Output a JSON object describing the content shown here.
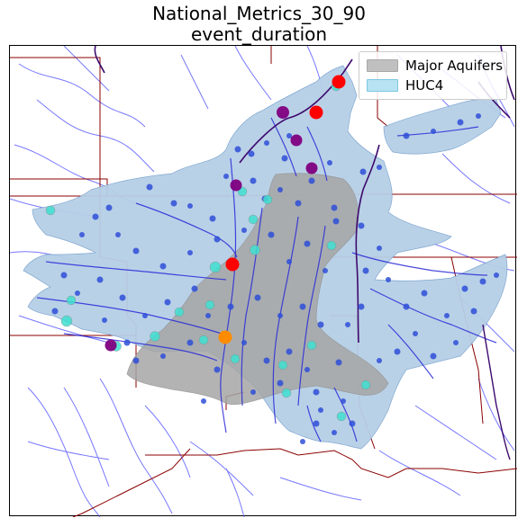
{
  "title_line1": "National_Metrics_30_90",
  "title_line2": "event_duration",
  "legend": [
    {
      "label": "Major Aquifers",
      "color": "#c0c0c0",
      "edge": "#a8a8a8"
    },
    {
      "label": "HUC4",
      "color": "#b7e3f2",
      "edge": "#7dc8e3"
    }
  ],
  "colors": {
    "huc4_fill": "#b6cfe6",
    "aquifer_fill": "#a9a9a9",
    "rivers": "#3030ff",
    "state_borders": "#8b0000",
    "major_river": "#3d0a6e",
    "site_blue": "#1f3fd0",
    "site_cyan": "#40e0d0",
    "site_purple": "#800080",
    "site_red": "#ff0000",
    "site_orange": "#ff8c00"
  }
}
